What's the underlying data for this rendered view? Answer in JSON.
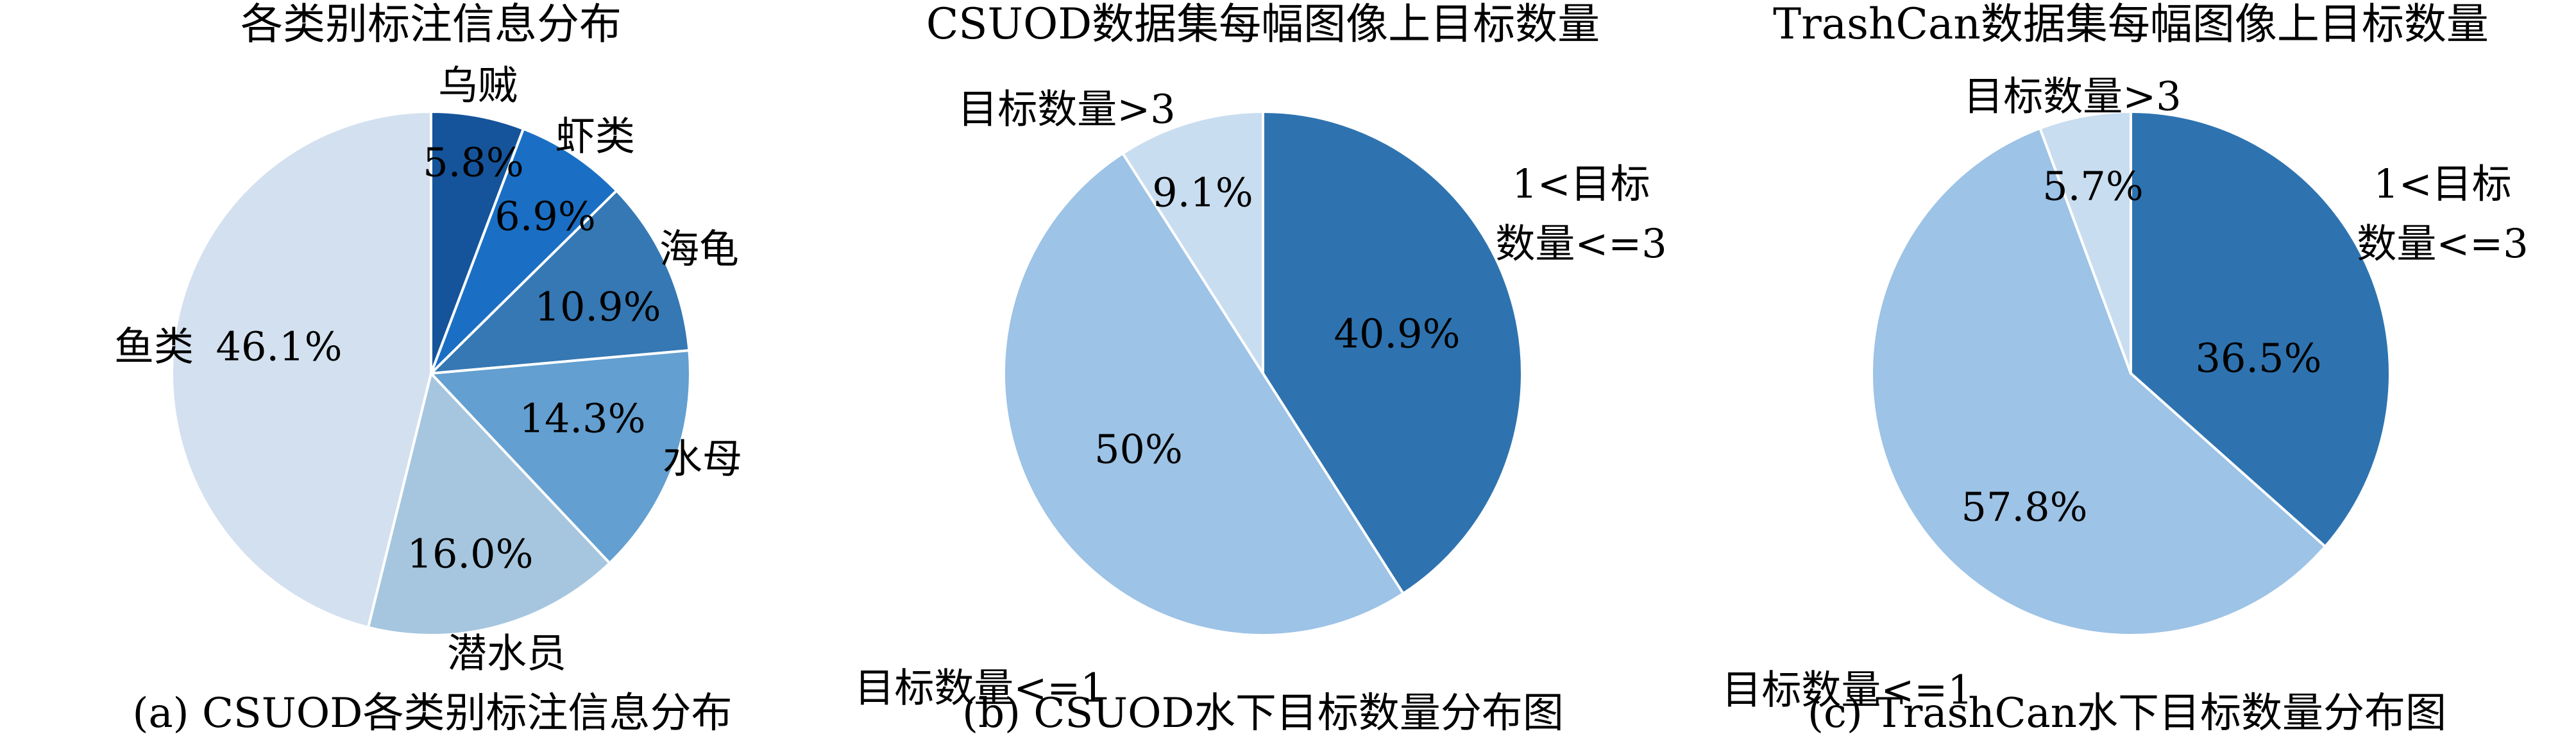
{
  "figure": {
    "background": "#ffffff",
    "text_color": "#000000",
    "slice_border_color": "#ffffff"
  },
  "chart_data": [
    {
      "type": "pie",
      "title": "各类别标注信息分布",
      "caption": "(a) CSUOD各类别标注信息分布",
      "start_angle_deg": 90,
      "direction": "clockwise",
      "unit": "%",
      "legend_position": "none",
      "categories": [
        "乌贼",
        "虾类",
        "海龟",
        "水母",
        "潜水员",
        "鱼类"
      ],
      "values": [
        5.8,
        6.9,
        10.9,
        14.3,
        16.0,
        46.1
      ],
      "slices": [
        {
          "label": "乌贼",
          "value": 5.8,
          "pct_label": "5.8%",
          "color": "#15549B"
        },
        {
          "label": "虾类",
          "value": 6.9,
          "pct_label": "6.9%",
          "color": "#1A6FC4"
        },
        {
          "label": "海龟",
          "value": 10.9,
          "pct_label": "10.9%",
          "color": "#3578B3"
        },
        {
          "label": "水母",
          "value": 14.3,
          "pct_label": "14.3%",
          "color": "#639FD0"
        },
        {
          "label": "潜水员",
          "value": 16.0,
          "pct_label": "16.0%",
          "color": "#A6C6DF"
        },
        {
          "label": "鱼类",
          "value": 46.1,
          "pct_label": "46.1%",
          "color": "#D3E0EF"
        }
      ]
    },
    {
      "type": "pie",
      "title": "CSUOD数据集每幅图像上目标数量",
      "caption": "(b) CSUOD水下目标数量分布图",
      "start_angle_deg": 90,
      "direction": "clockwise",
      "unit": "%",
      "legend_position": "none",
      "categories": [
        "1<目标数量<=3",
        "目标数量<=1",
        "目标数量>3"
      ],
      "values": [
        40.9,
        50,
        9.1
      ],
      "slices": [
        {
          "label": "1<目标数量<=3",
          "label_lines": [
            "1<目标",
            "数量<=3"
          ],
          "value": 40.9,
          "pct_label": "40.9%",
          "color": "#2E73B0"
        },
        {
          "label": "目标数量<=1",
          "value": 50,
          "pct_label": "50%",
          "color": "#9DC3E6"
        },
        {
          "label": "目标数量>3",
          "value": 9.1,
          "pct_label": "9.1%",
          "color": "#C9DDF0"
        }
      ]
    },
    {
      "type": "pie",
      "title": "TrashCan数据集每幅图像上目标数量",
      "caption": "(c) TrashCan水下目标数量分布图",
      "start_angle_deg": 90,
      "direction": "clockwise",
      "unit": "%",
      "legend_position": "none",
      "categories": [
        "1<目标数量<=3",
        "目标数量<=1",
        "目标数量>3"
      ],
      "values": [
        36.5,
        57.8,
        5.7
      ],
      "slices": [
        {
          "label": "1<目标数量<=3",
          "label_lines": [
            "1<目标",
            "数量<=3"
          ],
          "value": 36.5,
          "pct_label": "36.5%",
          "color": "#2E73B0"
        },
        {
          "label": "目标数量<=1",
          "value": 57.8,
          "pct_label": "57.8%",
          "color": "#9DC3E6"
        },
        {
          "label": "目标数量>3",
          "value": 5.7,
          "pct_label": "5.7%",
          "color": "#C9DDF0"
        }
      ]
    }
  ]
}
